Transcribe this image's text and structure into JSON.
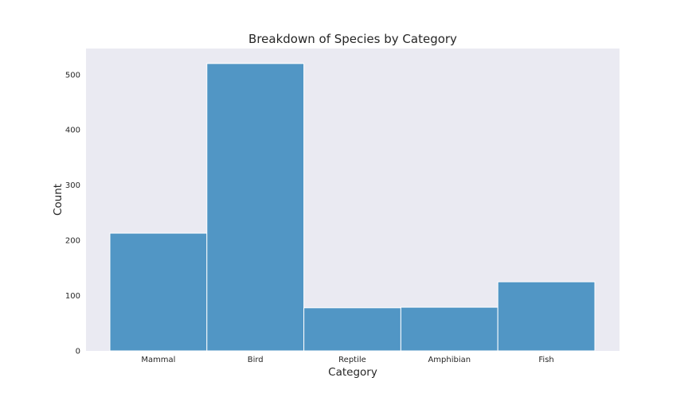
{
  "chart_data": {
    "type": "bar",
    "title": "Breakdown of Species by Category",
    "xlabel": "Category",
    "ylabel": "Count",
    "categories": [
      "Mammal",
      "Bird",
      "Reptile",
      "Amphibian",
      "Fish"
    ],
    "values": [
      213,
      520,
      78,
      79,
      125
    ],
    "ylim": [
      0,
      545
    ],
    "yticks": [
      0,
      100,
      200,
      300,
      400,
      500
    ],
    "grid": false,
    "legend": "none",
    "colors": {
      "plot_background": "#eaeaf2",
      "bar_fill": "#5196c5",
      "bar_edge": "#ffffff",
      "text": "#262626"
    }
  }
}
